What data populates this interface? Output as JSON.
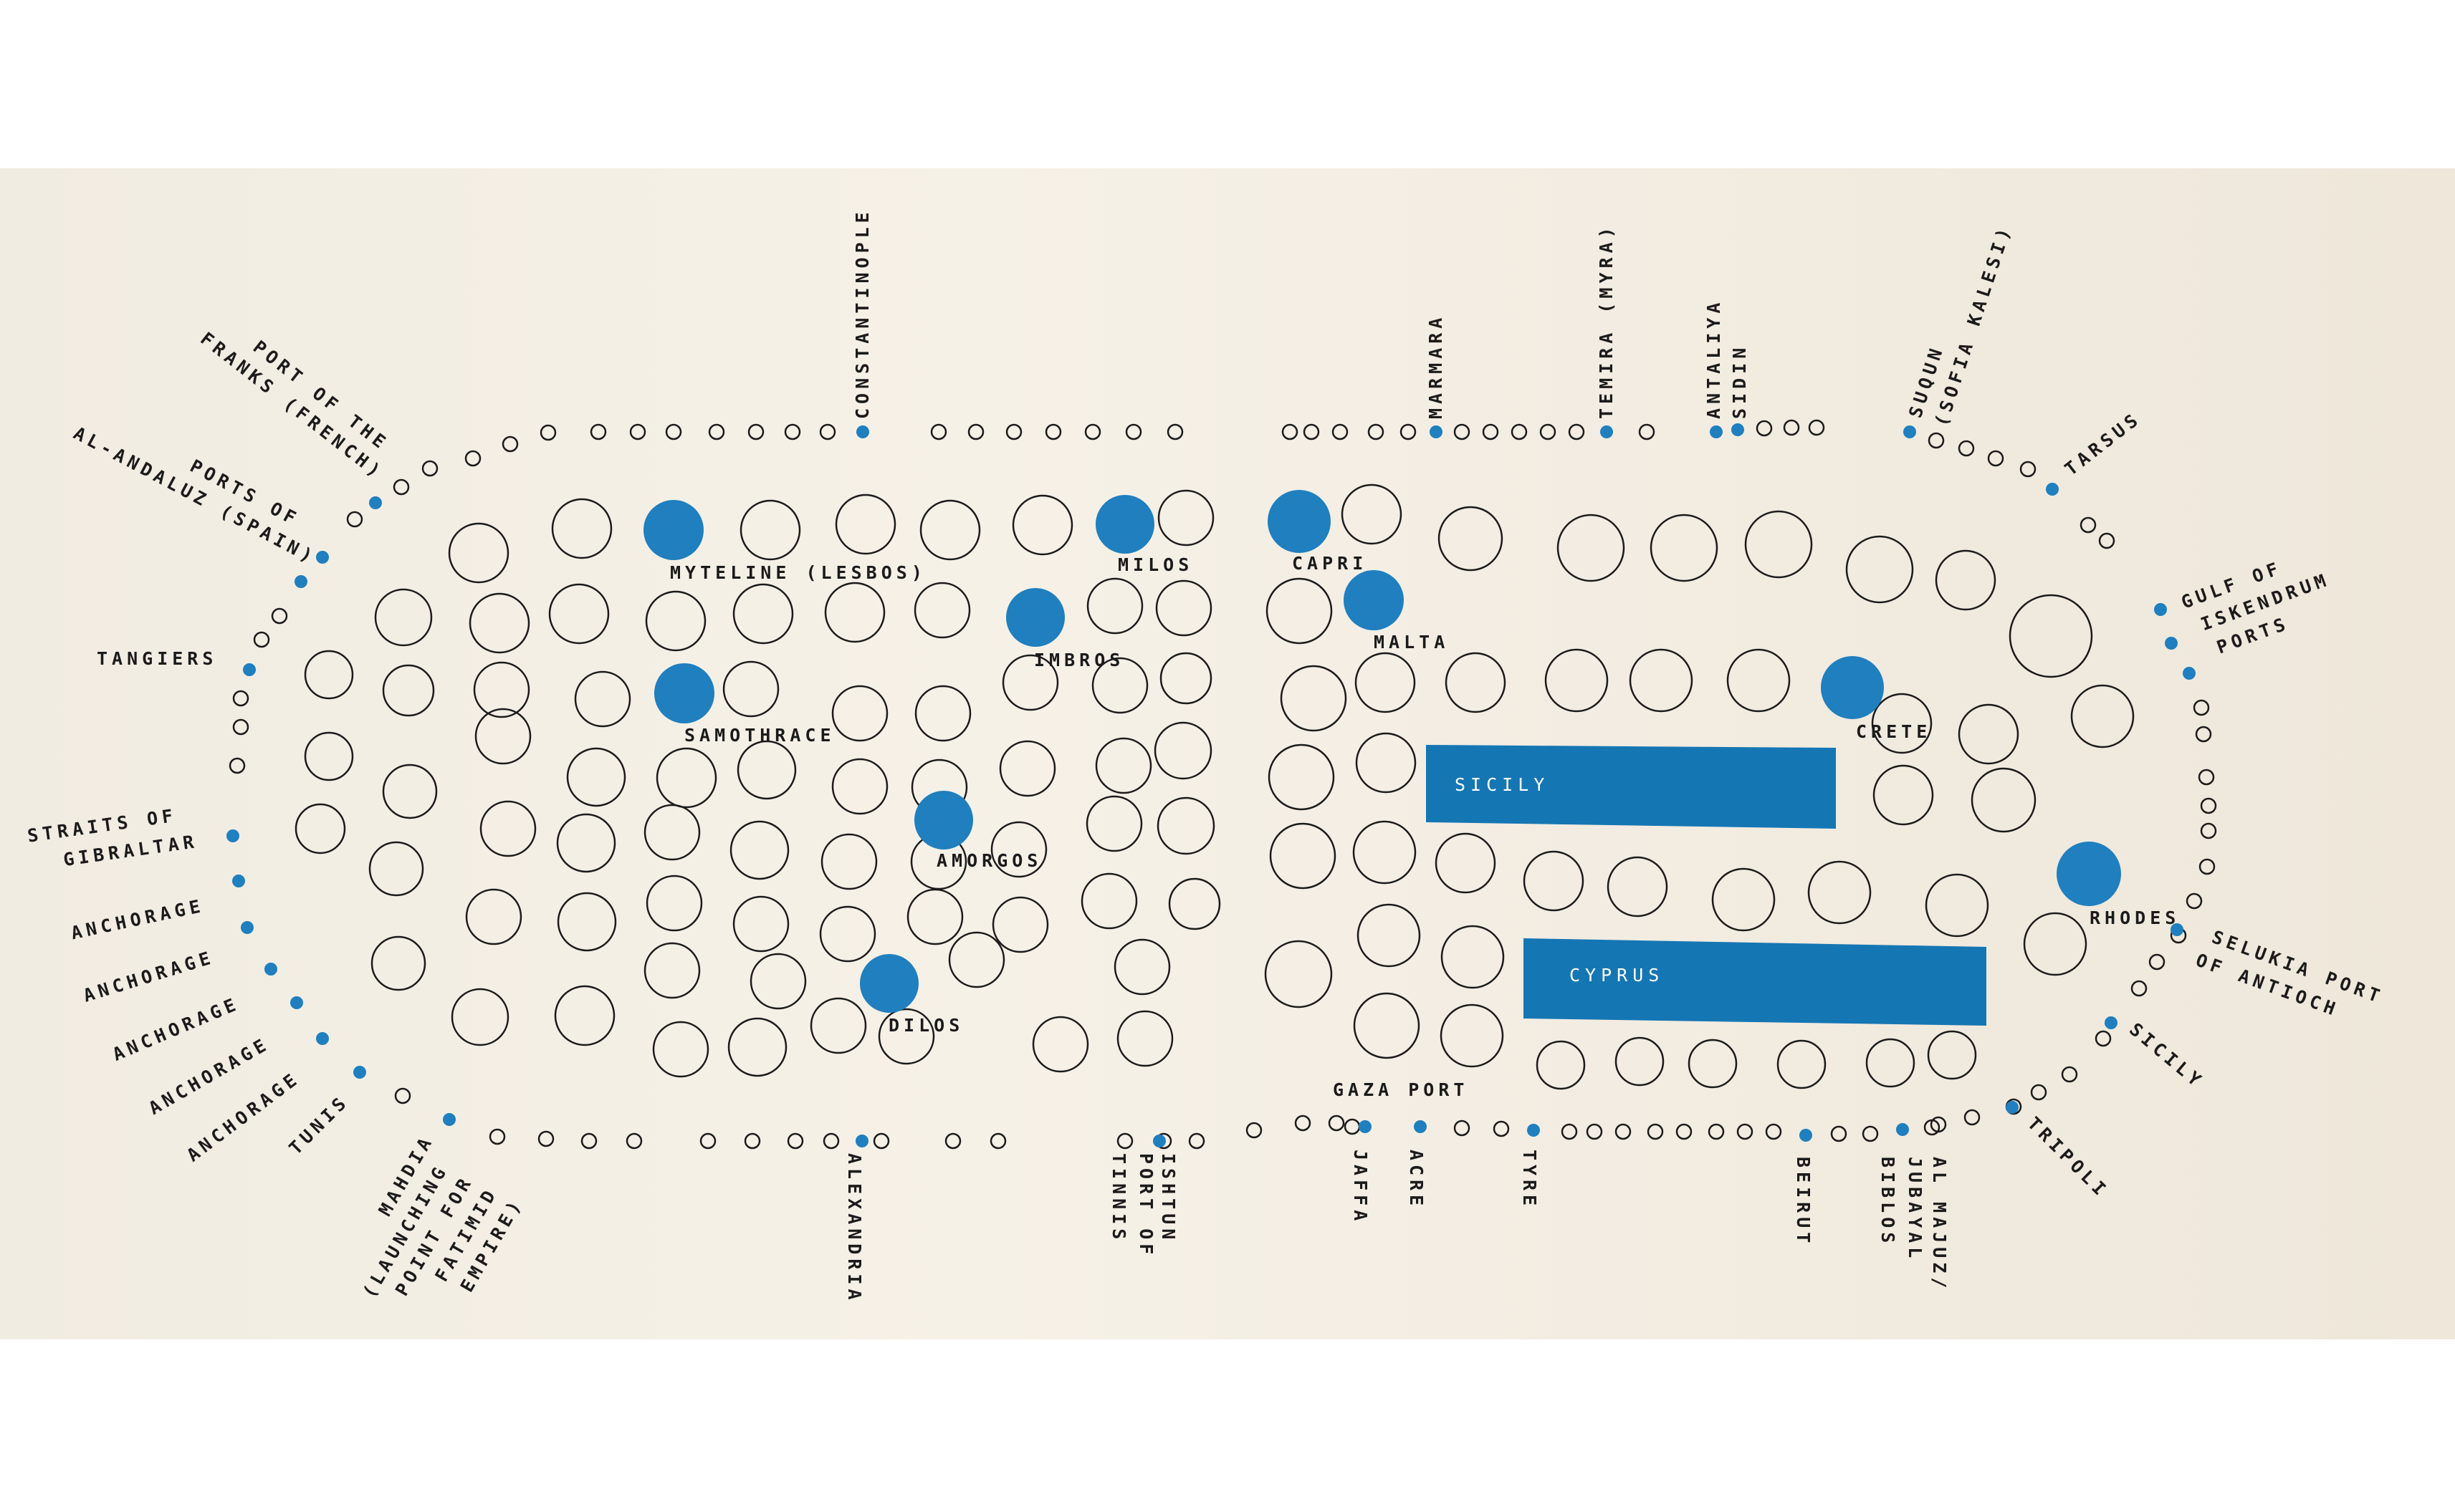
{
  "colors": {
    "accent": "#1f7fbf",
    "ink": "#1b1b1b",
    "paper": "#f4efe5",
    "background": "#ffffff"
  },
  "regions": {
    "sicily": "SICILY",
    "cyprus": "CYPRUS"
  },
  "islands": {
    "myteline": "MYTELINE (LESBOS)",
    "milos": "MILOS",
    "imbros": "IMBROS",
    "samothrace": "SAMOTHRACE",
    "amorgos": "AMORGOS",
    "dilos": "DILOS",
    "capri": "CAPRI",
    "malta": "MALTA",
    "crete": "CRETE",
    "rhodes": "RHODES"
  },
  "ports": {
    "port_franks": [
      "PORT OF THE",
      "FRANKS (FRENCH)"
    ],
    "ports_al_andaluz": [
      "PORTS OF",
      "AL-ANDALUZ (SPAIN)"
    ],
    "tangiers": "TANGIERS",
    "straits": [
      "STRAITS OF",
      "GIBRALTAR"
    ],
    "anchorage_1": "ANCHORAGE",
    "anchorage_2": "ANCHORAGE",
    "anchorage_3": "ANCHORAGE",
    "anchorage_4": "ANCHORAGE",
    "anchorage_5": "ANCHORAGE",
    "tunis": "TUNIS",
    "mahdia": [
      "MAHDIA",
      "(LAUNCHING",
      "POINT FOR",
      "FATIMID",
      "EMPIRE)"
    ],
    "alexandria": "ALEXANDRIA",
    "port_tinnis": [
      "PORT OF",
      "TINNIS"
    ],
    "ishtun": "ISHTUN",
    "constantinople": "CONSTANTINOPLE",
    "marmara": "MARMARA",
    "temira": "TEMIRA (MYRA)",
    "antaliya": "ANTALIYA",
    "sidin": "SIDIN",
    "suqun": [
      "SUQUN",
      "(SOFIA KALESI)"
    ],
    "tarsus": "TARSUS",
    "iskendrum": [
      "GULF OF",
      "ISKENDRUM",
      "PORTS"
    ],
    "selukia": [
      "SELUKIA PORT",
      "OF ANTIOCH"
    ],
    "sicily_port": "SICILY",
    "tripoli": "TRIPOLI",
    "gaza": "GAZA PORT",
    "jaffa": "JAFFA",
    "acre": "ACRE",
    "tyre": "TYRE",
    "beirut": "BEIRUT",
    "jubayal": [
      "JUBAYAL",
      "BIBLOS"
    ],
    "al_majuz": [
      "AL MAJUZ/"
    ]
  }
}
